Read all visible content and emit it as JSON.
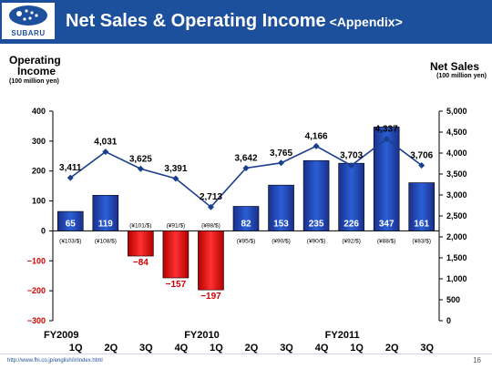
{
  "header": {
    "logo_text": "SUBARU",
    "title": "Net Sales & Operating Income",
    "title_suffix": "<Appendix>"
  },
  "left_axis": {
    "title_line1": "Operating",
    "title_line2": "Income",
    "unit": "(100 million yen)"
  },
  "right_axis": {
    "title": "Net Sales",
    "unit": "(100 million yen)"
  },
  "footer": {
    "url": "http://www.fhi.co.jp/english/ir/index.html",
    "page": "16"
  },
  "colors": {
    "header": "#1c4f9c",
    "bar_positive": "#1a3fa8",
    "bar_negative": "#d61515",
    "line": "#1a3f8c"
  },
  "chart_data": {
    "type": "bar+line",
    "categories": [
      "1Q",
      "2Q",
      "3Q",
      "4Q",
      "1Q",
      "2Q",
      "3Q",
      "4Q",
      "1Q",
      "2Q",
      "3Q"
    ],
    "fiscal_years": [
      {
        "label": "FY2009",
        "start_index": 0
      },
      {
        "label": "FY2010",
        "start_index": 4
      },
      {
        "label": "FY2011",
        "start_index": 8
      }
    ],
    "series": [
      {
        "name": "Operating Income",
        "type": "bar",
        "axis": "left",
        "values": [
          65,
          119,
          -84,
          -157,
          -197,
          82,
          153,
          235,
          226,
          347,
          161
        ]
      },
      {
        "name": "Net Sales",
        "type": "line",
        "axis": "right",
        "values": [
          3411,
          4031,
          3625,
          3391,
          2713,
          3642,
          3765,
          4166,
          3703,
          4337,
          3706
        ]
      }
    ],
    "exchange_rates": [
      "(¥103/$)",
      "(¥108/$)",
      "(¥101/$)",
      "(¥91/$)",
      "(¥98/$)",
      "(¥95/$)",
      "(¥90/$)",
      "(¥90/$)",
      "(¥92/$)",
      "(¥88/$)",
      "(¥83/$)"
    ],
    "left_axis": {
      "ylim": [
        -300,
        400
      ],
      "ticks": [
        400,
        300,
        200,
        100,
        0,
        -100,
        -200,
        -300
      ]
    },
    "right_axis": {
      "ylim": [
        0,
        5000
      ],
      "ticks": [
        5000,
        4500,
        4000,
        3500,
        3000,
        2500,
        2000,
        1500,
        1000,
        500,
        0
      ]
    },
    "grid": false
  }
}
